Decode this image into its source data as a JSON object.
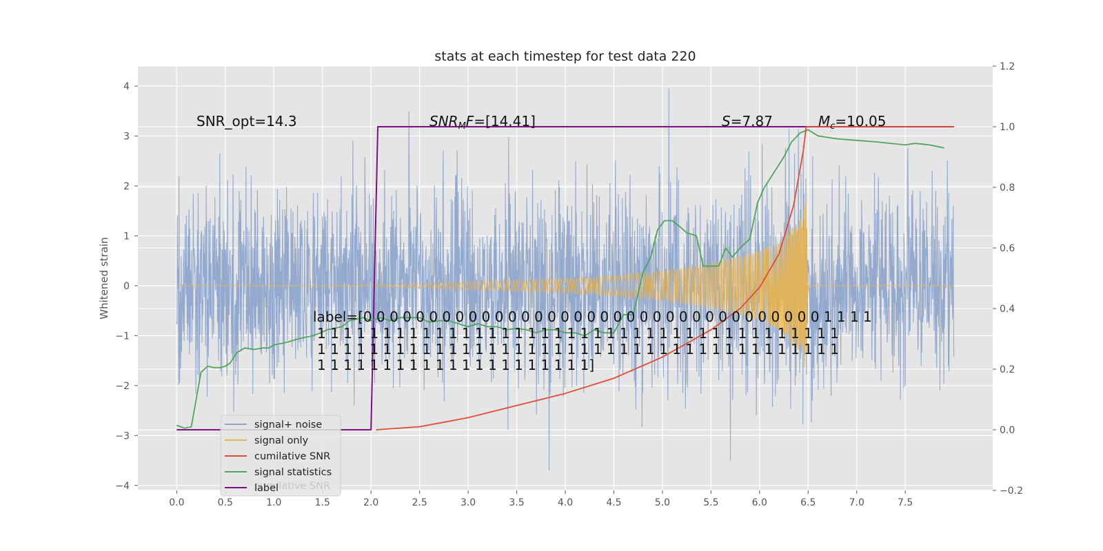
{
  "chart_data": {
    "type": "line",
    "title": "stats at each timestep for test data 220",
    "ylabel": "Whitened strain",
    "xlim": [
      -0.4,
      8.4
    ],
    "ylim": [
      -4.1,
      4.4
    ],
    "y2lim": [
      -0.2,
      1.2
    ],
    "x_ticks": [
      "0.0",
      "0.5",
      "1.0",
      "1.5",
      "2.0",
      "2.5",
      "3.0",
      "3.5",
      "4.0",
      "4.5",
      "5.0",
      "5.5",
      "6.0",
      "6.5",
      "7.0",
      "7.5"
    ],
    "y_ticks": [
      "4",
      "3",
      "2",
      "1",
      "0",
      "−1",
      "−2",
      "−3",
      "−4"
    ],
    "y2_ticks": [
      "1.2",
      "1.0",
      "0.8",
      "0.6",
      "0.4",
      "0.2",
      "0.0",
      "−0.2"
    ],
    "grid": true,
    "legend_position": "lower-left",
    "colors": {
      "noise": "#8EA5CC",
      "signal": "#E8B450",
      "cumulative": "#E24A33",
      "statistics": "#4EA65A",
      "label": "#7B0F86",
      "background": "#E5E5E5"
    },
    "series": [
      {
        "name": "signal+ noise",
        "axis": "left",
        "description_values": {
          "x_range": [
            0.0,
            8.0
          ],
          "typical_abs_max": 2.0,
          "peak": 3.95,
          "trough": -3.7
        }
      },
      {
        "name": "signal only",
        "axis": "left",
        "x_start": 0.0,
        "x_end": 8.0,
        "envelope": {
          "x": [
            0.0,
            2.0,
            3.0,
            4.0,
            4.5,
            5.0,
            5.5,
            6.0,
            6.2,
            6.4,
            6.48,
            6.5,
            8.0
          ],
          "y": [
            0.0,
            0.02,
            0.08,
            0.15,
            0.2,
            0.3,
            0.45,
            0.7,
            0.9,
            1.3,
            1.75,
            0.0,
            0.0
          ]
        }
      },
      {
        "name": "cumilative SNR",
        "axis": "right",
        "x": [
          2.05,
          2.5,
          3.0,
          3.5,
          4.0,
          4.5,
          5.0,
          5.5,
          5.8,
          6.0,
          6.2,
          6.35,
          6.45,
          6.48,
          8.0
        ],
        "y": [
          0.0,
          0.01,
          0.04,
          0.08,
          0.12,
          0.17,
          0.24,
          0.33,
          0.4,
          0.47,
          0.58,
          0.74,
          0.92,
          1.0,
          1.0
        ]
      },
      {
        "name": "signal statistics",
        "axis": "right",
        "x": [
          0.0,
          0.08,
          0.15,
          0.25,
          0.32,
          0.38,
          0.45,
          0.5,
          0.55,
          0.62,
          0.7,
          0.8,
          0.88,
          0.95,
          1.0,
          1.08,
          1.15,
          1.25,
          1.32,
          1.4,
          1.48,
          1.55,
          1.62,
          1.7,
          1.78,
          1.85,
          1.92,
          2.0,
          2.1,
          2.2,
          2.3,
          2.4,
          2.5,
          2.6,
          2.7,
          2.8,
          2.9,
          3.0,
          3.1,
          3.2,
          3.3,
          3.4,
          3.5,
          3.6,
          3.7,
          3.8,
          3.9,
          4.0,
          4.1,
          4.2,
          4.3,
          4.4,
          4.5,
          4.6,
          4.7,
          4.8,
          4.88,
          4.95,
          5.02,
          5.1,
          5.18,
          5.25,
          5.35,
          5.42,
          5.5,
          5.58,
          5.65,
          5.72,
          5.8,
          5.9,
          5.98,
          6.05,
          6.15,
          6.25,
          6.33,
          6.42,
          6.5,
          6.6,
          6.8,
          7.0,
          7.2,
          7.5,
          7.6,
          7.75,
          7.9
        ],
        "y": [
          0.015,
          0.005,
          0.01,
          0.19,
          0.21,
          0.205,
          0.205,
          0.21,
          0.22,
          0.255,
          0.27,
          0.265,
          0.27,
          0.27,
          0.28,
          0.285,
          0.29,
          0.3,
          0.305,
          0.31,
          0.32,
          0.33,
          0.335,
          0.34,
          0.36,
          0.365,
          0.37,
          0.36,
          0.37,
          0.36,
          0.37,
          0.37,
          0.37,
          0.355,
          0.36,
          0.36,
          0.35,
          0.34,
          0.35,
          0.34,
          0.34,
          0.33,
          0.335,
          0.33,
          0.32,
          0.33,
          0.33,
          0.32,
          0.32,
          0.31,
          0.33,
          0.32,
          0.32,
          0.38,
          0.38,
          0.52,
          0.57,
          0.66,
          0.69,
          0.69,
          0.67,
          0.65,
          0.64,
          0.54,
          0.54,
          0.54,
          0.6,
          0.57,
          0.6,
          0.63,
          0.75,
          0.8,
          0.85,
          0.9,
          0.95,
          0.98,
          0.99,
          0.97,
          0.96,
          0.955,
          0.95,
          0.94,
          0.945,
          0.94,
          0.93
        ]
      },
      {
        "name": "label",
        "axis": "right",
        "x": [
          0.0,
          2.0,
          2.07,
          8.0
        ],
        "y": [
          0.0,
          0.0,
          1.0,
          1.0
        ]
      }
    ],
    "annotations": {
      "snr_opt": "SNR_opt=14.3",
      "snr_mf": "SNR_MF=[14.41]",
      "s_stat": "S=7.87",
      "chirp_mass": "M_c=10.05",
      "label_line1": "label=[0 0 0 0 0 0 0 0 0 0 0 0 0 0 0 0 0 0 0 0 0 0 0 0 0 0 0 0 0 0 0 0 0 0 0 1 1 1 1",
      "label_line2": "1 1 1 1 1 1 1 1 1 1 1 1 1 1 1 1 1 1 1 1 1 1 1 1 1 1 1 1 1 1 1 1 1 1 1 1 1 1 1 1",
      "label_line3": "1 1 1 1 1 1 1 1 1 1 1 1 1 1 1 1 1 1 1 1 1 1 1 1 1 1 1 1 1 1 1 1 1 1 1 1 1 1 1 1",
      "label_line4": "1 1 1 1 1 1 1 1 1 1 1 1 1 1 1 1 1 1 1 1 1]"
    },
    "legend": {
      "entries": [
        "signal+ noise",
        "signal only",
        "cumilative SNR",
        "signal statistics",
        "label"
      ],
      "ghost_text": "cumilative SNR"
    }
  }
}
